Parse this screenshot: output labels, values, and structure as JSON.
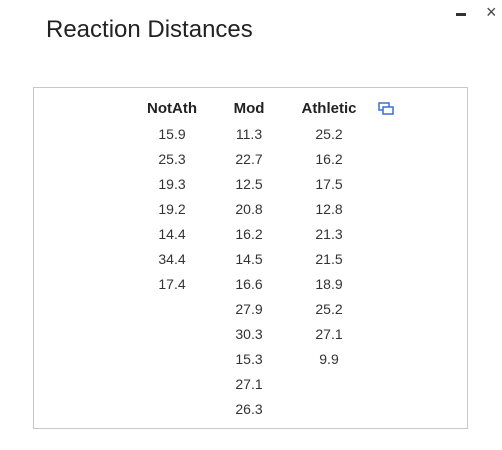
{
  "window": {
    "title": "Reaction Distances",
    "close_glyph": "×"
  },
  "icons": {
    "minimize": "minimize-icon",
    "close": "close-icon",
    "expand": "expand-window-icon"
  },
  "colors": {
    "accent_icon": "#3b6fd4",
    "panel_border": "#c8c8c8"
  },
  "table": {
    "columns": [
      {
        "header": "NotAth",
        "values": [
          "15.9",
          "25.3",
          "19.3",
          "19.2",
          "14.4",
          "34.4",
          "17.4"
        ]
      },
      {
        "header": "Mod",
        "values": [
          "11.3",
          "22.7",
          "12.5",
          "20.8",
          "16.2",
          "14.5",
          "16.6",
          "27.9",
          "30.3",
          "15.3",
          "27.1",
          "26.3"
        ]
      },
      {
        "header": "Athletic",
        "values": [
          "25.2",
          "16.2",
          "17.5",
          "12.8",
          "21.3",
          "21.5",
          "18.9",
          "25.2",
          "27.1",
          "9.9"
        ]
      }
    ]
  }
}
